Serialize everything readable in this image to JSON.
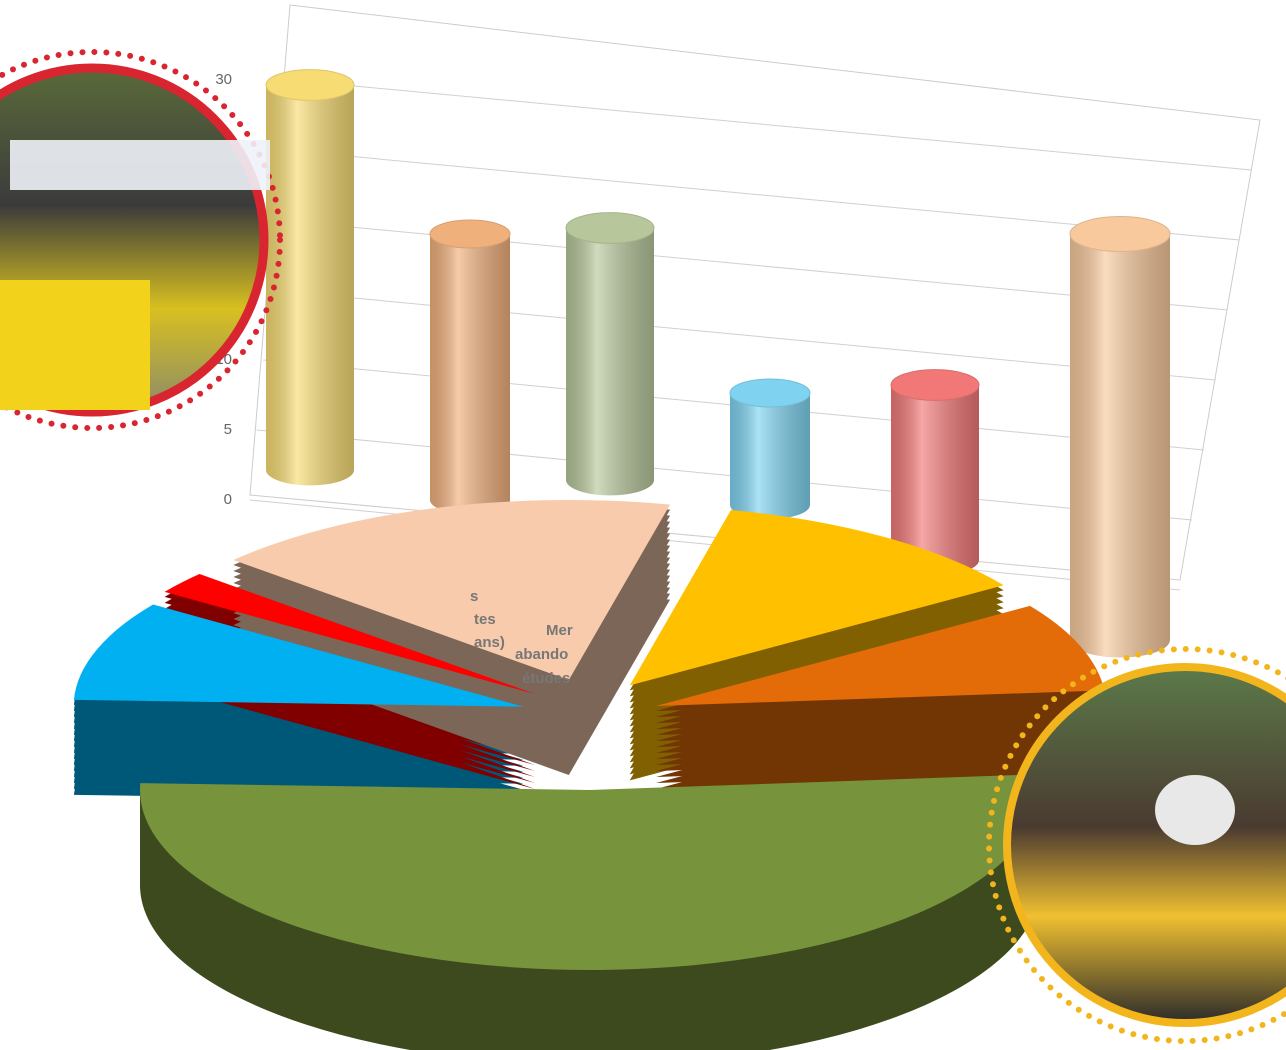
{
  "chart_data": [
    {
      "type": "bar",
      "categories": [
        null,
        null,
        null,
        null,
        null,
        null
      ],
      "values": [
        27.5,
        19,
        18,
        8,
        12.5,
        29
      ],
      "colors": [
        "#f7dc74",
        "#f0b07c",
        "#b7c79b",
        "#7fd3f0",
        "#f27878",
        "#f7c99c"
      ],
      "ylim": [
        0,
        30
      ],
      "yticks": [
        0,
        5,
        10,
        15,
        20,
        25,
        30
      ],
      "grid": true
    },
    {
      "type": "pie",
      "categories": [
        null,
        null,
        null,
        null,
        null,
        null
      ],
      "values": [
        52,
        9,
        2,
        17,
        12,
        8
      ],
      "colors": [
        "#77933c",
        "#00b0f0",
        "#ff0000",
        "#f8cbad",
        "#ffc000",
        "#e36c09"
      ],
      "annotations": [
        "s",
        "tes",
        "ans)",
        "Mer",
        "abando",
        "études"
      ]
    }
  ]
}
